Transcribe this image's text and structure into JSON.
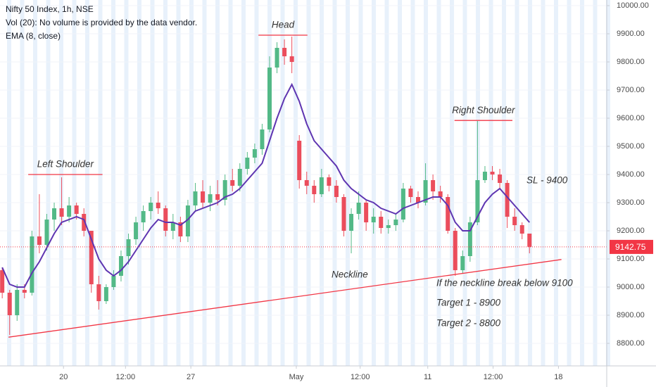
{
  "chart_data": {
    "type": "candlestick",
    "title": "Nifty 50 Index, 1h, NSE",
    "volume_note": "Vol (20): No volume is provided by the data vendor.",
    "categories": [
      null,
      null,
      null,
      null,
      null,
      null,
      null,
      null,
      null,
      null,
      null,
      null,
      null,
      null,
      null,
      null,
      null,
      null,
      null,
      null,
      null,
      null,
      null,
      null,
      null,
      null,
      null,
      null,
      null,
      null,
      null,
      null,
      null,
      null,
      null,
      null,
      null,
      null,
      null,
      null,
      null,
      null,
      null,
      null,
      null,
      null,
      null,
      null,
      null,
      null,
      null,
      null,
      null,
      null,
      null,
      null,
      null,
      null,
      null,
      null,
      null,
      null,
      null,
      null,
      null,
      null,
      null,
      null,
      null,
      null,
      null,
      null
    ],
    "open": [
      9060,
      8980,
      8900,
      8990,
      8980,
      9180,
      9150,
      9240,
      9280,
      9250,
      9290,
      9260,
      9200,
      9010,
      8950,
      9000,
      9040,
      9110,
      9170,
      9230,
      9270,
      9300,
      9280,
      9200,
      9230,
      9180,
      9290,
      9340,
      9300,
      9330,
      9310,
      9380,
      9360,
      9420,
      9460,
      9490,
      9560,
      9780,
      9850,
      9820,
      9520,
      9380,
      9360,
      9330,
      9390,
      9360,
      9320,
      9200,
      9260,
      9300,
      9230,
      9250,
      9210,
      9220,
      9240,
      9350,
      9320,
      9300,
      9380,
      9340,
      9320,
      9200,
      9060,
      9110,
      9230,
      9380,
      9410,
      9400,
      9370,
      9250,
      9220,
      9190
    ],
    "high": [
      9070,
      8990,
      9010,
      9010,
      9200,
      9330,
      9260,
      9300,
      9390,
      9320,
      9300,
      9280,
      9200,
      9040,
      9010,
      9060,
      9130,
      9190,
      9250,
      9290,
      9320,
      9340,
      9290,
      9260,
      9250,
      9310,
      9370,
      9380,
      9360,
      9380,
      9400,
      9420,
      9440,
      9480,
      9510,
      9580,
      9820,
      9870,
      9880,
      9890,
      9540,
      9410,
      9380,
      9420,
      9400,
      9380,
      9330,
      9280,
      9340,
      9310,
      9280,
      9270,
      9240,
      9260,
      9370,
      9360,
      9340,
      9440,
      9400,
      9360,
      9330,
      9210,
      9130,
      9250,
      9590,
      9430,
      9430,
      9420,
      9380,
      9280,
      9230,
      9190
    ],
    "low": [
      8960,
      8830,
      8880,
      8960,
      8970,
      9120,
      9130,
      9200,
      9220,
      9230,
      9240,
      9180,
      8980,
      8920,
      8940,
      8990,
      9020,
      9080,
      9150,
      9200,
      9240,
      9260,
      9180,
      9170,
      9160,
      9160,
      9270,
      9280,
      9270,
      9290,
      9290,
      9340,
      9340,
      9400,
      9440,
      9470,
      9550,
      9760,
      9790,
      9760,
      9350,
      9330,
      9300,
      9320,
      9340,
      9300,
      9180,
      9120,
      9240,
      9200,
      9190,
      9190,
      9190,
      9200,
      9230,
      9300,
      9280,
      9290,
      9310,
      9300,
      9190,
      9040,
      9050,
      9090,
      9220,
      9370,
      9380,
      9350,
      9210,
      9200,
      9170,
      9120
    ],
    "close": [
      8980,
      8900,
      8990,
      8980,
      9180,
      9150,
      9240,
      9280,
      9250,
      9290,
      9260,
      9200,
      9010,
      8950,
      9000,
      9040,
      9110,
      9170,
      9230,
      9270,
      9300,
      9280,
      9200,
      9230,
      9180,
      9290,
      9340,
      9300,
      9330,
      9310,
      9380,
      9360,
      9420,
      9460,
      9490,
      9560,
      9780,
      9850,
      9820,
      9800,
      9380,
      9360,
      9330,
      9390,
      9360,
      9320,
      9200,
      9260,
      9300,
      9230,
      9250,
      9210,
      9220,
      9240,
      9350,
      9320,
      9300,
      9380,
      9340,
      9320,
      9200,
      9060,
      9110,
      9230,
      9380,
      9410,
      9400,
      9370,
      9250,
      9220,
      9190,
      9143
    ],
    "up_color": "#53b987",
    "down_color": "#eb4d5c",
    "ema": {
      "name": "EMA (8, close)",
      "color": "#5e35b1",
      "values": [
        9070,
        9010,
        9000,
        9000,
        9050,
        9090,
        9140,
        9190,
        9230,
        9240,
        9250,
        9240,
        9170,
        9100,
        9060,
        9040,
        9060,
        9090,
        9130,
        9170,
        9210,
        9240,
        9230,
        9230,
        9220,
        9240,
        9270,
        9280,
        9290,
        9300,
        9320,
        9330,
        9350,
        9380,
        9410,
        9440,
        9520,
        9600,
        9670,
        9720,
        9660,
        9580,
        9520,
        9490,
        9460,
        9430,
        9380,
        9350,
        9330,
        9310,
        9300,
        9280,
        9270,
        9260,
        9280,
        9290,
        9300,
        9310,
        9320,
        9320,
        9290,
        9230,
        9200,
        9200,
        9250,
        9300,
        9330,
        9350,
        9320,
        9290,
        9260,
        9230
      ]
    },
    "last_price": 9142.75,
    "last_price_color": "#f23645",
    "xlim": [
      -0.3,
      81.4
    ],
    "ylim": [
      8720,
      10020
    ],
    "xticks": [
      {
        "value": 8.25,
        "label": "20"
      },
      {
        "value": 16.6,
        "label": "12:00"
      },
      {
        "value": 25.4,
        "label": "27"
      },
      {
        "value": 39.6,
        "label": "May"
      },
      {
        "value": 48.2,
        "label": "12:00"
      },
      {
        "value": 57.3,
        "label": "11"
      },
      {
        "value": 66.1,
        "label": "12:00"
      },
      {
        "value": 74.9,
        "label": "18"
      }
    ],
    "yticks": [
      {
        "value": 10000,
        "label": "10000.00"
      },
      {
        "value": 9900,
        "label": "9900.00"
      },
      {
        "value": 9800,
        "label": "9800.00"
      },
      {
        "value": 9700,
        "label": "9700.00"
      },
      {
        "value": 9600,
        "label": "9600.00"
      },
      {
        "value": 9500,
        "label": "9500.00"
      },
      {
        "value": 9400,
        "label": "9400.00"
      },
      {
        "value": 9300,
        "label": "9300.00"
      },
      {
        "value": 9200,
        "label": "9200.00"
      },
      {
        "value": 9100,
        "label": "9100.00"
      },
      {
        "value": 9000,
        "label": "9000.00"
      },
      {
        "value": 8900,
        "label": "8900.00"
      },
      {
        "value": 8800,
        "label": "8800.00"
      }
    ],
    "grid": true,
    "neckline": {
      "label": "Neckline",
      "color": "#f23645",
      "x": [
        0.85,
        75.3
      ],
      "values": [
        8822,
        9098
      ]
    },
    "levels": [
      {
        "text": "Left Shoulder",
        "value": 9400,
        "x": [
          3.5,
          13.5
        ]
      },
      {
        "text": "Head",
        "value": 9895,
        "x": [
          34.5,
          41.1
        ]
      },
      {
        "text": "Right Shoulder",
        "value": 9592,
        "x": [
          60.9,
          68.7
        ]
      }
    ],
    "notes": [
      "SL - 9400",
      "If the neckline break below 9100",
      "Target 1 - 8900",
      "Target 2 - 8800"
    ]
  }
}
